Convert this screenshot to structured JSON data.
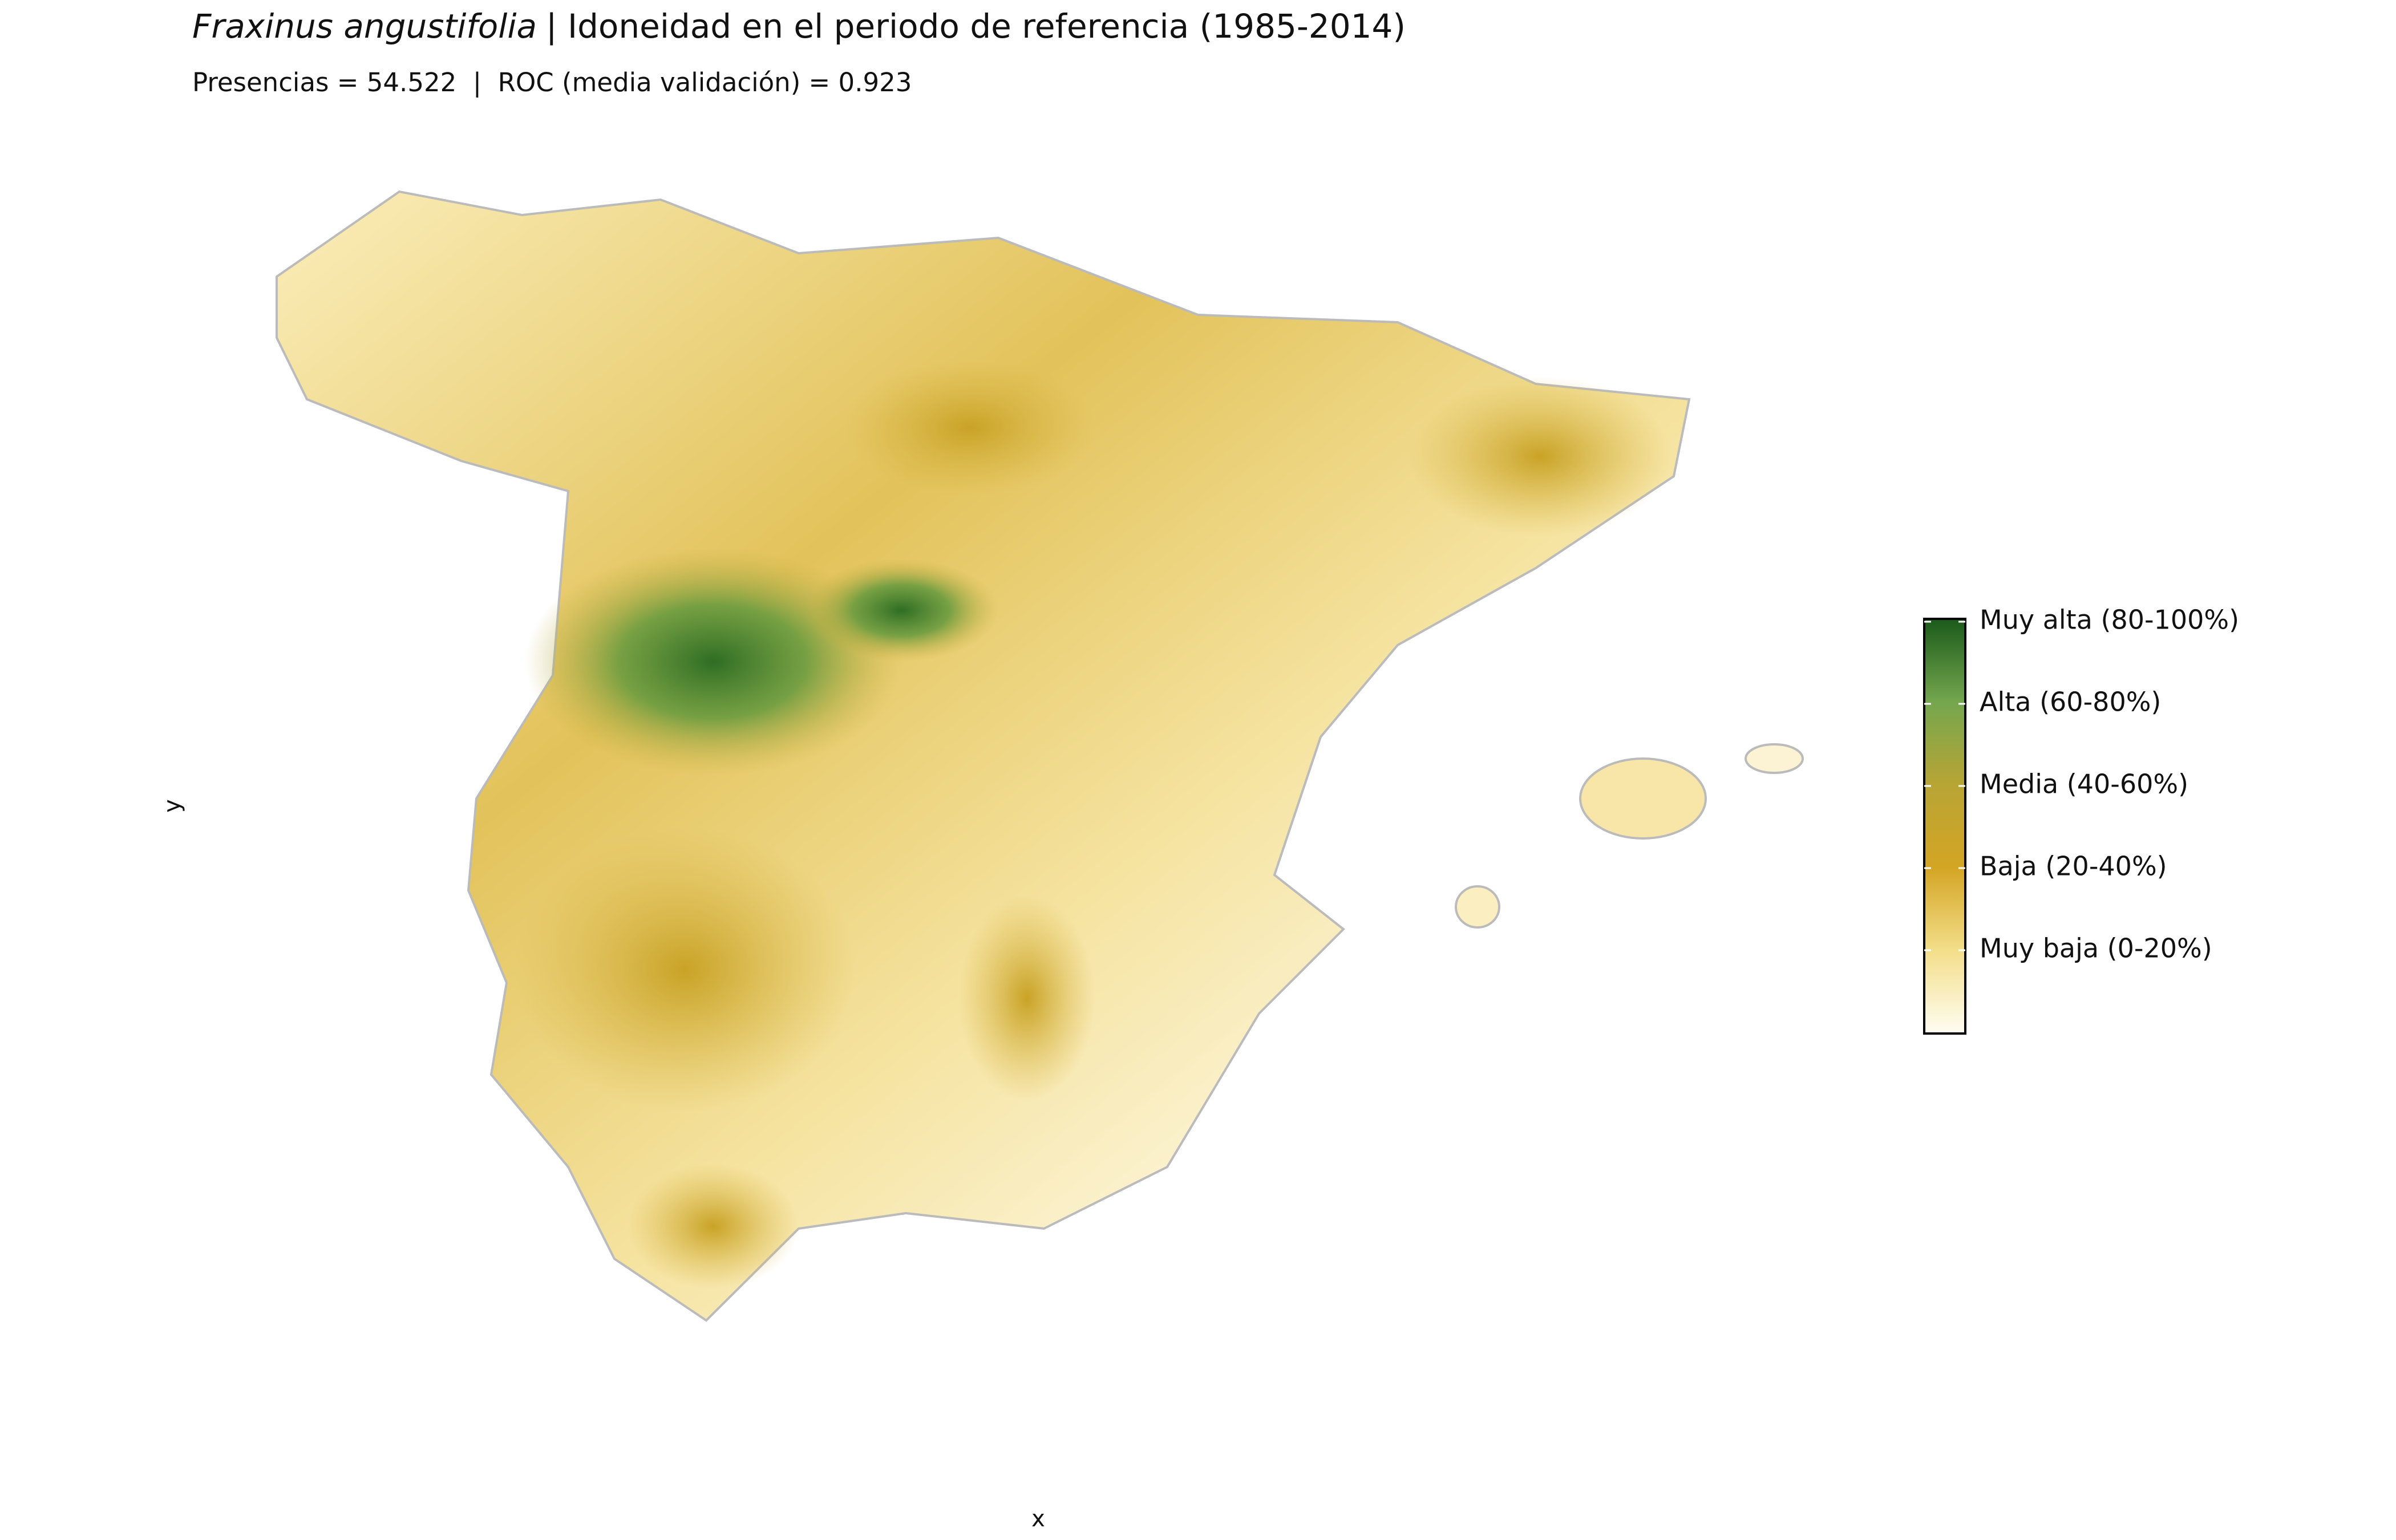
{
  "header": {
    "title_species": "Fraxinus angustifolia",
    "title_rest": "| Idoneidad en el periodo de referencia (1985-2014)",
    "subtitle": "Presencias = 54.522  |  ROC (media validación) = 0.923"
  },
  "axes": {
    "x_label": "x",
    "y_label": "y"
  },
  "legend": {
    "labels": [
      "Muy alta (80-100%)",
      "Alta (60-80%)",
      "Media (40-60%)",
      "Baja (20-40%)",
      "Muy baja (0-20%)"
    ]
  }
}
